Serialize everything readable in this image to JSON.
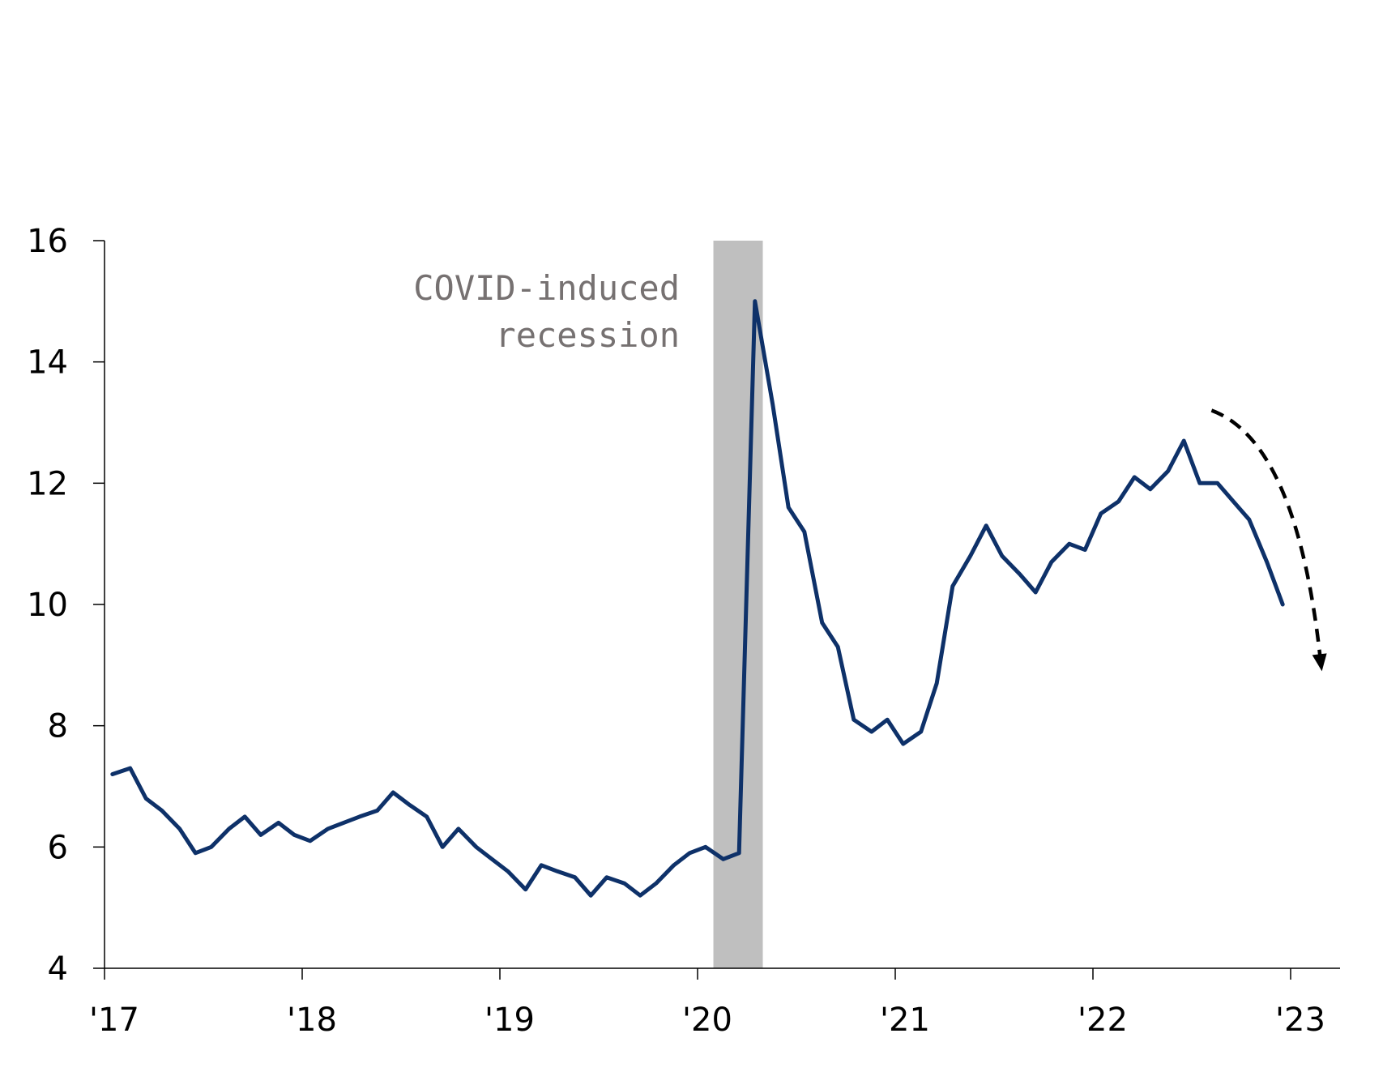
{
  "chart_data": {
    "type": "line",
    "title": "",
    "xlabel": "",
    "ylabel": "",
    "ylim": [
      4,
      16
    ],
    "yticks": [
      4,
      6,
      8,
      10,
      12,
      14,
      16
    ],
    "xlim": [
      2017,
      2023.25
    ],
    "xticks": [
      {
        "value": 2017,
        "label": "'17"
      },
      {
        "value": 2018,
        "label": "'18"
      },
      {
        "value": 2019,
        "label": "'19"
      },
      {
        "value": 2020,
        "label": "'20"
      },
      {
        "value": 2021,
        "label": "'21"
      },
      {
        "value": 2022,
        "label": "'22"
      },
      {
        "value": 2023,
        "label": "'23"
      }
    ],
    "grid": false,
    "series_color": "#0E3169",
    "series": [
      {
        "x": [
          2017.04,
          2017.13,
          2017.21,
          2017.29,
          2017.38,
          2017.46,
          2017.54,
          2017.63,
          2017.71,
          2017.79,
          2017.88,
          2017.96,
          2018.04,
          2018.13,
          2018.21,
          2018.29,
          2018.38,
          2018.46,
          2018.54,
          2018.63,
          2018.71,
          2018.79,
          2018.88,
          2018.96,
          2019.04,
          2019.13,
          2019.21,
          2019.29,
          2019.38,
          2019.46,
          2019.54,
          2019.63,
          2019.71,
          2019.79,
          2019.88,
          2019.96,
          2020.04,
          2020.13,
          2020.21,
          2020.29,
          2020.38,
          2020.46,
          2020.54,
          2020.63,
          2020.71,
          2020.79,
          2020.88,
          2020.96,
          2021.04,
          2021.13,
          2021.21,
          2021.29,
          2021.38,
          2021.46,
          2021.54,
          2021.63,
          2021.71,
          2021.79,
          2021.88,
          2021.96,
          2022.04,
          2022.13,
          2022.21,
          2022.29,
          2022.38,
          2022.46,
          2022.54,
          2022.63,
          2022.71,
          2022.79,
          2022.88,
          2022.96
        ],
        "values": [
          7.2,
          7.3,
          6.8,
          6.6,
          6.3,
          5.9,
          6.0,
          6.3,
          6.5,
          6.2,
          6.4,
          6.2,
          6.1,
          6.3,
          6.4,
          6.5,
          6.6,
          6.9,
          6.7,
          6.5,
          6.0,
          6.3,
          6.0,
          5.8,
          5.6,
          5.3,
          5.7,
          5.6,
          5.5,
          5.2,
          5.5,
          5.4,
          5.2,
          5.4,
          5.7,
          5.9,
          6.0,
          5.8,
          5.9,
          15.0,
          13.3,
          11.6,
          11.2,
          9.7,
          9.3,
          8.1,
          7.9,
          8.1,
          7.7,
          7.9,
          8.7,
          10.3,
          10.8,
          11.3,
          10.8,
          10.5,
          10.2,
          10.7,
          11.0,
          10.9,
          11.5,
          11.7,
          12.1,
          11.9,
          12.2,
          12.7,
          12.0,
          12.0,
          11.7,
          11.4,
          10.7,
          10.0
        ]
      }
    ],
    "recession_band": {
      "x_start": 2020.08,
      "x_end": 2020.33,
      "color": "#BFBFBF"
    },
    "annotations": {
      "recession_label_line1": "COVID-induced",
      "recession_label_line2": "recession"
    },
    "trend_arrow": {
      "style": "dashed",
      "color": "#000000",
      "x_start": 2022.6,
      "y_start": 13.2,
      "x_end": 2023.15,
      "y_end": 8.9
    }
  }
}
